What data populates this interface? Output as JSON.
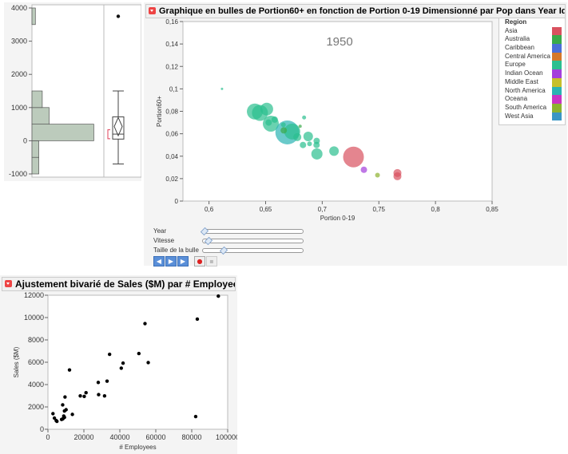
{
  "chart_data": [
    {
      "type": "histogram-boxplot",
      "ylim": [
        -1100,
        4100
      ],
      "yticks": [
        "4000",
        "3000",
        "2000",
        "1000",
        "0",
        "-1000"
      ],
      "bins": [
        {
          "from": -1000,
          "to": -500,
          "count": 2
        },
        {
          "from": -500,
          "to": 0,
          "count": 2
        },
        {
          "from": 0,
          "to": 500,
          "count": 18
        },
        {
          "from": 500,
          "to": 1000,
          "count": 5
        },
        {
          "from": 1000,
          "to": 1500,
          "count": 3
        },
        {
          "from": 3500,
          "to": 4000,
          "count": 1
        }
      ],
      "boxplot": {
        "whisker_low": -700,
        "q1": 50,
        "median": 200,
        "q3": 720,
        "whisker_high": 1500,
        "mean": 430,
        "mean_ci": [
          150,
          700
        ],
        "outliers": [
          3750
        ],
        "shortest_half": [
          60,
          330
        ]
      },
      "colors": {
        "bar": "#bccbbc",
        "bar_edge": "#555",
        "shortest_half": "#e0405a"
      }
    },
    {
      "type": "bubble",
      "title": "Graphique en bulles de Portion60+ en fonction de Portion 0-19 Dimensionné par Pop dans Year Identifiant Country",
      "year_label": "1950",
      "xlabel": "Portion 0-19",
      "ylabel": "Portion60+",
      "xlim": [
        0.577,
        0.85
      ],
      "ylim": [
        0,
        0.16
      ],
      "xticks": [
        "0,6",
        "0,65",
        "0,7",
        "0,75",
        "0,8",
        "0,85"
      ],
      "yticks": [
        "0",
        "0,02",
        "0,04",
        "0,06",
        "0,08",
        "0,1",
        "0,12",
        "0,14",
        "0,16"
      ],
      "legend": {
        "title": "Region",
        "items": [
          {
            "name": "Asia",
            "color": "#d9515f"
          },
          {
            "name": "Australia",
            "color": "#3aaa4a"
          },
          {
            "name": "Caribbean",
            "color": "#4a6fd8"
          },
          {
            "name": "Central America",
            "color": "#d5782a"
          },
          {
            "name": "Europe",
            "color": "#2bbf8f"
          },
          {
            "name": "Indian Ocean",
            "color": "#a43fdc"
          },
          {
            "name": "Middle East",
            "color": "#c6c02b"
          },
          {
            "name": "North America",
            "color": "#2bb3b3"
          },
          {
            "name": "Oceana",
            "color": "#c933c4"
          },
          {
            "name": "South America",
            "color": "#8db22f"
          },
          {
            "name": "West Asia",
            "color": "#3a96c4"
          }
        ]
      },
      "points": [
        {
          "x": 0.6115,
          "y": 0.1,
          "size": 1.5,
          "region": "Europe"
        },
        {
          "x": 0.6405,
          "y": 0.0798,
          "size": 10,
          "region": "Europe"
        },
        {
          "x": 0.645,
          "y": 0.0786,
          "size": 10,
          "region": "Europe"
        },
        {
          "x": 0.651,
          "y": 0.082,
          "size": 8,
          "region": "Europe"
        },
        {
          "x": 0.6546,
          "y": 0.069,
          "size": 10,
          "region": "Europe"
        },
        {
          "x": 0.658,
          "y": 0.0726,
          "size": 4,
          "region": "Europe"
        },
        {
          "x": 0.6527,
          "y": 0.07,
          "size": 4,
          "region": "Europe"
        },
        {
          "x": 0.6692,
          "y": 0.0612,
          "size": 15,
          "region": "North America"
        },
        {
          "x": 0.6735,
          "y": 0.062,
          "size": 10,
          "region": "Europe"
        },
        {
          "x": 0.666,
          "y": 0.063,
          "size": 4,
          "region": "Australia"
        },
        {
          "x": 0.6657,
          "y": 0.068,
          "size": 3,
          "region": "Europe"
        },
        {
          "x": 0.684,
          "y": 0.0745,
          "size": 2.5,
          "region": "Europe"
        },
        {
          "x": 0.6805,
          "y": 0.0667,
          "size": 2,
          "region": "Australia"
        },
        {
          "x": 0.678,
          "y": 0.057,
          "size": 5,
          "region": "Europe"
        },
        {
          "x": 0.6876,
          "y": 0.0576,
          "size": 6,
          "region": "Europe"
        },
        {
          "x": 0.683,
          "y": 0.05,
          "size": 4,
          "region": "Europe"
        },
        {
          "x": 0.6888,
          "y": 0.051,
          "size": 3,
          "region": "Europe"
        },
        {
          "x": 0.6951,
          "y": 0.0536,
          "size": 4,
          "region": "Europe"
        },
        {
          "x": 0.695,
          "y": 0.05,
          "size": 4,
          "region": "Europe"
        },
        {
          "x": 0.6953,
          "y": 0.042,
          "size": 7,
          "region": "Europe"
        },
        {
          "x": 0.7104,
          "y": 0.0445,
          "size": 6,
          "region": "Europe"
        },
        {
          "x": 0.7276,
          "y": 0.0393,
          "size": 13,
          "region": "Asia"
        },
        {
          "x": 0.7368,
          "y": 0.0279,
          "size": 4,
          "region": "Indian Ocean"
        },
        {
          "x": 0.7488,
          "y": 0.0231,
          "size": 3,
          "region": "South America"
        },
        {
          "x": 0.7664,
          "y": 0.025,
          "size": 5,
          "region": "Asia"
        },
        {
          "x": 0.7664,
          "y": 0.0221,
          "size": 5,
          "region": "Asia"
        }
      ]
    },
    {
      "type": "scatter",
      "title": "Ajustement bivarié de Sales ($M) par # Employees",
      "xlabel": "# Employees",
      "ylabel": "Sales ($M)",
      "xlim": [
        0,
        100000
      ],
      "ylim": [
        0,
        12000
      ],
      "xticks": [
        "0",
        "20000",
        "40000",
        "60000",
        "80000",
        "100000"
      ],
      "yticks": [
        "0",
        "2000",
        "4000",
        "6000",
        "8000",
        "10000",
        "12000"
      ],
      "points": [
        [
          2800,
          1400
        ],
        [
          3600,
          1000
        ],
        [
          4600,
          780
        ],
        [
          5000,
          710
        ],
        [
          7600,
          880
        ],
        [
          8300,
          930
        ],
        [
          8800,
          1180
        ],
        [
          9200,
          1070
        ],
        [
          8200,
          2180
        ],
        [
          9500,
          2890
        ],
        [
          9200,
          1640
        ],
        [
          10100,
          1750
        ],
        [
          12000,
          5310
        ],
        [
          13600,
          1330
        ],
        [
          18000,
          2990
        ],
        [
          20200,
          2940
        ],
        [
          21200,
          3270
        ],
        [
          28000,
          4190
        ],
        [
          28200,
          3100
        ],
        [
          31500,
          2990
        ],
        [
          32900,
          4310
        ],
        [
          34300,
          6710
        ],
        [
          40800,
          5470
        ],
        [
          41800,
          5920
        ],
        [
          50600,
          6780
        ],
        [
          54000,
          9460
        ],
        [
          55800,
          5970
        ],
        [
          82200,
          1140
        ],
        [
          83100,
          9860
        ],
        [
          94800,
          11920
        ]
      ]
    }
  ],
  "controls": {
    "year": "Year",
    "speed": "Vitesse",
    "bubble_size": "Taille de la bulle",
    "year_value": 0,
    "speed_value": 0.04,
    "bubble_size_value": 0.2
  }
}
